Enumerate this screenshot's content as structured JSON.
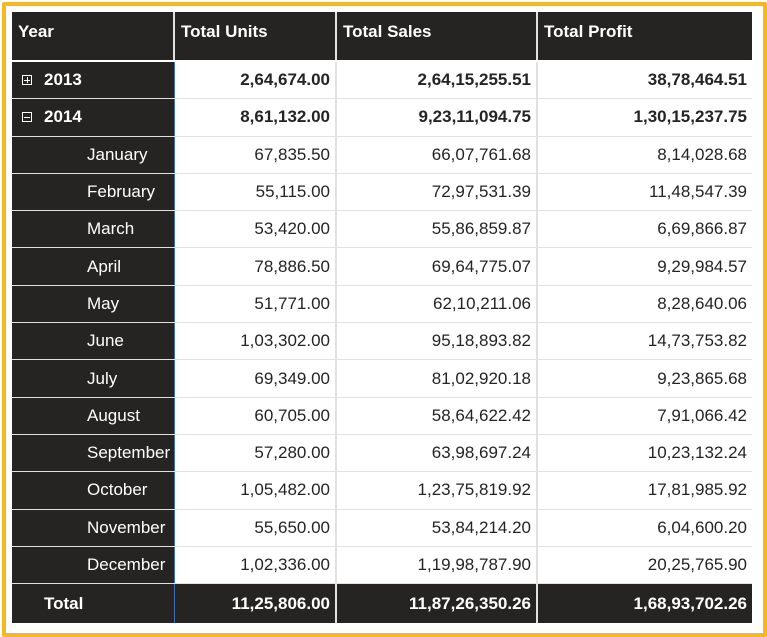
{
  "columns": {
    "year": "Year",
    "units": "Total Units",
    "sales": "Total Sales",
    "profit": "Total Profit"
  },
  "years": [
    {
      "label": "2013",
      "state": "collapsed",
      "units": "2,64,674.00",
      "sales": "2,64,15,255.51",
      "profit": "38,78,464.51"
    },
    {
      "label": "2014",
      "state": "expanded",
      "units": "8,61,132.00",
      "sales": "9,23,11,094.75",
      "profit": "1,30,15,237.75"
    }
  ],
  "months": [
    {
      "label": "January",
      "units": "67,835.50",
      "sales": "66,07,761.68",
      "profit": "8,14,028.68"
    },
    {
      "label": "February",
      "units": "55,115.00",
      "sales": "72,97,531.39",
      "profit": "11,48,547.39"
    },
    {
      "label": "March",
      "units": "53,420.00",
      "sales": "55,86,859.87",
      "profit": "6,69,866.87"
    },
    {
      "label": "April",
      "units": "78,886.50",
      "sales": "69,64,775.07",
      "profit": "9,29,984.57"
    },
    {
      "label": "May",
      "units": "51,771.00",
      "sales": "62,10,211.06",
      "profit": "8,28,640.06"
    },
    {
      "label": "June",
      "units": "1,03,302.00",
      "sales": "95,18,893.82",
      "profit": "14,73,753.82"
    },
    {
      "label": "July",
      "units": "69,349.00",
      "sales": "81,02,920.18",
      "profit": "9,23,865.68"
    },
    {
      "label": "August",
      "units": "60,705.00",
      "sales": "58,64,622.42",
      "profit": "7,91,066.42"
    },
    {
      "label": "September",
      "units": "57,280.00",
      "sales": "63,98,697.24",
      "profit": "10,23,132.24"
    },
    {
      "label": "October",
      "units": "1,05,482.00",
      "sales": "1,23,75,819.92",
      "profit": "17,81,985.92"
    },
    {
      "label": "November",
      "units": "55,650.00",
      "sales": "53,84,214.20",
      "profit": "6,04,600.20"
    },
    {
      "label": "December",
      "units": "1,02,336.00",
      "sales": "1,19,98,787.90",
      "profit": "20,25,765.90"
    }
  ],
  "total": {
    "label": "Total",
    "units": "11,25,806.00",
    "sales": "11,87,26,350.26",
    "profit": "1,68,93,702.26"
  },
  "colors": {
    "header_bg": "#252423",
    "frame": "#f6b820",
    "grid": "#e1e1e1",
    "accent_line": "#3d6fb4"
  }
}
